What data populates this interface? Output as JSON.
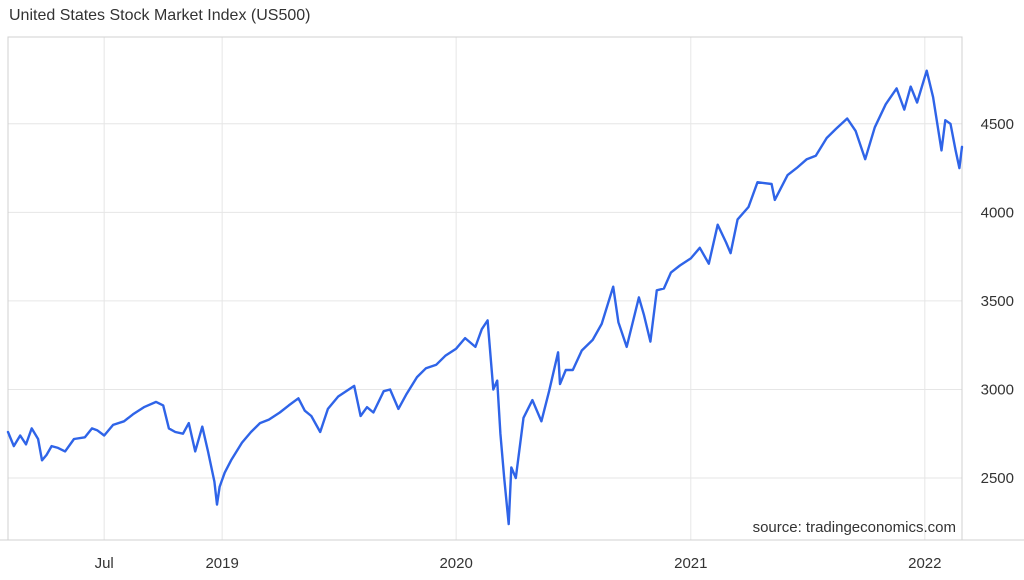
{
  "chart_data": {
    "type": "line",
    "title": "United States Stock Market Index (US500)",
    "source": "source: tradingeconomics.com",
    "xlabel": "",
    "ylabel": "",
    "x_ticks": [
      "Jul",
      "2019",
      "2020",
      "2021",
      "2022"
    ],
    "x_tick_dates": [
      "2018-07-01",
      "2019-01-01",
      "2020-01-01",
      "2021-01-01",
      "2022-01-01"
    ],
    "y_ticks": [
      2500,
      3000,
      3500,
      4000,
      4500
    ],
    "xlim": [
      "2018-02-01",
      "2022-02-28"
    ],
    "ylim": [
      2150,
      4990
    ],
    "y_axis_side": "right",
    "grid": true,
    "color": "#2f64e8",
    "series": [
      {
        "x": [
          "2018-02-01",
          "2018-02-10",
          "2018-02-20",
          "2018-03-01",
          "2018-03-10",
          "2018-03-20",
          "2018-03-26",
          "2018-04-02",
          "2018-04-10",
          "2018-04-20",
          "2018-05-01",
          "2018-05-15",
          "2018-06-01",
          "2018-06-12",
          "2018-06-20",
          "2018-07-01",
          "2018-07-15",
          "2018-08-01",
          "2018-08-15",
          "2018-09-01",
          "2018-09-20",
          "2018-10-01",
          "2018-10-10",
          "2018-10-20",
          "2018-11-01",
          "2018-11-10",
          "2018-11-20",
          "2018-12-01",
          "2018-12-10",
          "2018-12-20",
          "2018-12-24",
          "2018-12-28",
          "2019-01-05",
          "2019-01-15",
          "2019-02-01",
          "2019-02-15",
          "2019-03-01",
          "2019-03-15",
          "2019-04-01",
          "2019-04-15",
          "2019-04-30",
          "2019-05-10",
          "2019-05-20",
          "2019-06-03",
          "2019-06-15",
          "2019-07-01",
          "2019-07-26",
          "2019-08-05",
          "2019-08-15",
          "2019-08-25",
          "2019-09-10",
          "2019-09-20",
          "2019-10-03",
          "2019-10-15",
          "2019-11-01",
          "2019-11-15",
          "2019-12-01",
          "2019-12-15",
          "2020-01-01",
          "2020-01-15",
          "2020-01-31",
          "2020-02-10",
          "2020-02-19",
          "2020-02-28",
          "2020-03-05",
          "2020-03-10",
          "2020-03-16",
          "2020-03-23",
          "2020-03-27",
          "2020-04-03",
          "2020-04-15",
          "2020-04-29",
          "2020-05-13",
          "2020-05-25",
          "2020-06-08",
          "2020-06-11",
          "2020-06-20",
          "2020-07-01",
          "2020-07-15",
          "2020-08-01",
          "2020-08-15",
          "2020-09-02",
          "2020-09-10",
          "2020-09-23",
          "2020-10-12",
          "2020-10-20",
          "2020-10-30",
          "2020-11-09",
          "2020-11-20",
          "2020-12-01",
          "2020-12-15",
          "2021-01-01",
          "2021-01-15",
          "2021-01-29",
          "2021-02-12",
          "2021-02-25",
          "2021-03-04",
          "2021-03-15",
          "2021-04-01",
          "2021-04-15",
          "2021-05-07",
          "2021-05-12",
          "2021-06-01",
          "2021-06-15",
          "2021-07-01",
          "2021-07-15",
          "2021-08-01",
          "2021-08-15",
          "2021-09-02",
          "2021-09-15",
          "2021-09-30",
          "2021-10-15",
          "2021-11-01",
          "2021-11-18",
          "2021-11-30",
          "2021-12-10",
          "2021-12-20",
          "2022-01-04",
          "2022-01-14",
          "2022-01-27",
          "2022-02-02",
          "2022-02-10",
          "2022-02-18",
          "2022-02-24",
          "2022-02-28"
        ],
        "y": [
          2760,
          2680,
          2740,
          2690,
          2780,
          2720,
          2600,
          2630,
          2680,
          2670,
          2650,
          2720,
          2730,
          2780,
          2770,
          2740,
          2800,
          2820,
          2860,
          2900,
          2930,
          2910,
          2780,
          2760,
          2750,
          2810,
          2650,
          2790,
          2650,
          2480,
          2350,
          2450,
          2530,
          2600,
          2700,
          2760,
          2810,
          2830,
          2870,
          2910,
          2950,
          2880,
          2850,
          2760,
          2890,
          2960,
          3020,
          2850,
          2900,
          2870,
          2990,
          3000,
          2890,
          2970,
          3070,
          3120,
          3140,
          3190,
          3230,
          3290,
          3240,
          3340,
          3390,
          3000,
          3050,
          2750,
          2500,
          2240,
          2560,
          2500,
          2840,
          2940,
          2820,
          2990,
          3210,
          3030,
          3110,
          3110,
          3220,
          3280,
          3370,
          3580,
          3380,
          3240,
          3520,
          3420,
          3270,
          3560,
          3570,
          3660,
          3700,
          3740,
          3800,
          3710,
          3930,
          3830,
          3770,
          3960,
          4030,
          4170,
          4160,
          4070,
          4210,
          4250,
          4300,
          4320,
          4420,
          4470,
          4530,
          4460,
          4300,
          4480,
          4610,
          4700,
          4580,
          4710,
          4620,
          4800,
          4650,
          4350,
          4520,
          4500,
          4350,
          4250,
          4370
        ]
      }
    ]
  }
}
